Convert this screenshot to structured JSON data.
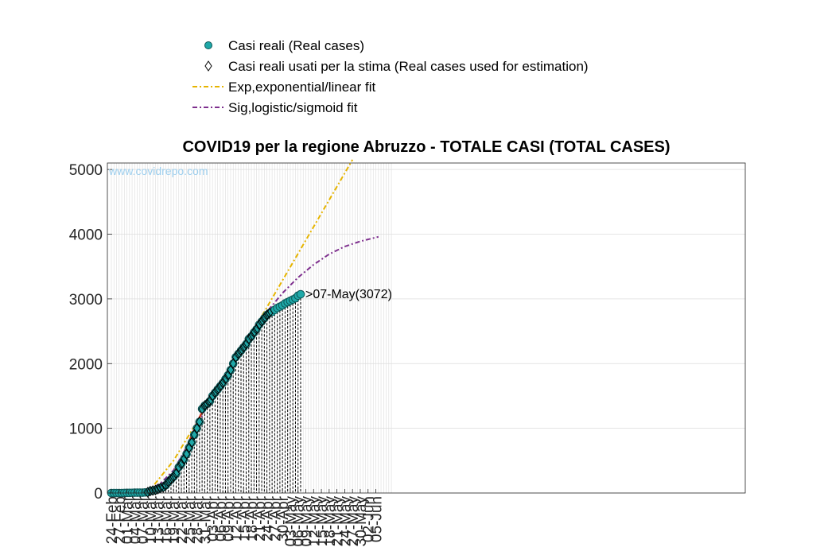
{
  "chart_data": {
    "type": "line",
    "title": "COVID19 per la regione Abruzzo - TOTALE CASI (TOTAL CASES)",
    "watermark": "www.covidrepo.com",
    "xlabel": "",
    "ylabel": "",
    "ylim": [
      0,
      5100
    ],
    "yticks": [
      0,
      1000,
      2000,
      3000,
      4000,
      5000
    ],
    "x_start": "24-Feb",
    "x_days": 108,
    "xtick_labels": [
      "24-Feb",
      "27-Feb",
      "01-Mar",
      "04-Mar",
      "07-Mar",
      "10-Mar",
      "13-Mar",
      "16-Mar",
      "19-Mar",
      "22-Mar",
      "25-Mar",
      "28-Mar",
      "31-Mar",
      "03-Apr",
      "06-Apr",
      "09-Apr",
      "12-Apr",
      "15-Apr",
      "18-Apr",
      "21-Apr",
      "24-Apr",
      "27-Apr",
      "30-Apr",
      "03-May",
      "06-May",
      "09-May",
      "12-May",
      "15-May",
      "18-May",
      "21-May",
      "24-May",
      "27-May",
      "30-May",
      "02-Jun",
      "05-Jun"
    ],
    "grid": true,
    "legend_position": "top-center",
    "colors": {
      "real": "#1fa8a8",
      "real_edge": "#0a5555",
      "exp": "#e6b400",
      "sig": "#7e2f8e",
      "red_fit": "#d9341f",
      "drop": "#000000",
      "grid": "#dcdcdc"
    },
    "series": [
      {
        "name": "Casi reali (Real cases)",
        "marker": "circle",
        "x_dates": [
          "24-Feb",
          "25-Feb",
          "26-Feb",
          "27-Feb",
          "28-Feb",
          "29-Feb",
          "01-Mar",
          "02-Mar",
          "03-Mar",
          "04-Mar",
          "05-Mar",
          "06-Mar",
          "07-Mar",
          "08-Mar",
          "09-Mar",
          "10-Mar",
          "11-Mar",
          "12-Mar",
          "13-Mar",
          "14-Mar",
          "15-Mar",
          "16-Mar",
          "17-Mar",
          "18-Mar",
          "19-Mar",
          "20-Mar",
          "21-Mar",
          "22-Mar",
          "23-Mar",
          "24-Mar",
          "25-Mar",
          "26-Mar",
          "27-Mar",
          "28-Mar",
          "29-Mar",
          "30-Mar",
          "31-Mar",
          "01-Apr",
          "02-Apr",
          "03-Apr",
          "04-Apr",
          "05-Apr",
          "06-Apr",
          "07-Apr",
          "08-Apr",
          "09-Apr",
          "10-Apr",
          "11-Apr",
          "12-Apr",
          "13-Apr",
          "14-Apr",
          "15-Apr",
          "16-Apr",
          "17-Apr",
          "18-Apr",
          "19-Apr",
          "20-Apr",
          "21-Apr",
          "22-Apr",
          "23-Apr",
          "24-Apr",
          "25-Apr",
          "26-Apr",
          "27-Apr",
          "28-Apr",
          "29-Apr",
          "30-Apr",
          "01-May",
          "02-May",
          "03-May",
          "04-May",
          "05-May",
          "06-May",
          "07-May"
        ],
        "values": [
          0,
          0,
          0,
          0,
          0,
          1,
          2,
          2,
          3,
          5,
          5,
          5,
          5,
          9,
          12,
          30,
          38,
          45,
          60,
          80,
          90,
          120,
          170,
          210,
          250,
          300,
          400,
          450,
          520,
          600,
          700,
          780,
          900,
          1000,
          1100,
          1300,
          1350,
          1380,
          1420,
          1500,
          1550,
          1600,
          1650,
          1700,
          1760,
          1820,
          1900,
          2000,
          2100,
          2150,
          2200,
          2250,
          2300,
          2380,
          2420,
          2480,
          2530,
          2600,
          2650,
          2700,
          2750,
          2780,
          2800,
          2830,
          2860,
          2880,
          2900,
          2930,
          2950,
          2970,
          2990,
          3010,
          3050,
          3072
        ]
      },
      {
        "name": "Casi reali usati per la stima (Real cases used for estimation)",
        "marker": "diamond",
        "from": "09-Mar",
        "to": "25-Apr"
      },
      {
        "name": "Exp,exponential/linear fit",
        "style": "dash-dot",
        "x_dates": [
          "09-Mar",
          "19-Mar",
          "25-Mar",
          "31-Mar",
          "15-Apr",
          "27-May"
        ],
        "values": [
          0,
          500,
          900,
          1300,
          2250,
          5150
        ]
      },
      {
        "name": "Sig,logistic/sigmoid fit",
        "style": "dash-dot",
        "x_dates": [
          "24-Feb",
          "01-Mar",
          "06-Mar",
          "10-Mar",
          "14-Mar",
          "19-Mar",
          "25-Mar",
          "31-Mar",
          "06-Apr",
          "12-Apr",
          "18-Apr",
          "24-Apr",
          "30-Apr",
          "06-May",
          "12-May",
          "18-May",
          "24-May",
          "30-May",
          "06-Jun"
        ],
        "values": [
          0,
          5,
          20,
          60,
          150,
          350,
          780,
          1280,
          1700,
          2100,
          2480,
          2800,
          3090,
          3330,
          3530,
          3690,
          3810,
          3890,
          3960
        ]
      },
      {
        "name": "",
        "style": "solid",
        "color_key": "red_fit",
        "x_dates": [
          "09-Mar",
          "16-Mar",
          "22-Mar",
          "28-Mar",
          "03-Apr",
          "09-Apr",
          "15-Apr",
          "21-Apr",
          "25-Apr"
        ],
        "values": [
          0,
          150,
          500,
          1100,
          1550,
          1870,
          2250,
          2600,
          2790
        ]
      }
    ],
    "annotations": [
      {
        "text": ">07-May(3072)",
        "x_date": "07-May",
        "y": 3072
      }
    ]
  }
}
